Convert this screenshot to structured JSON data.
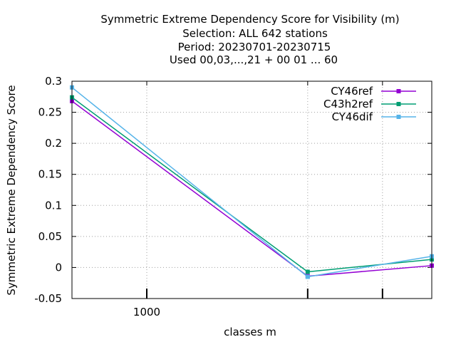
{
  "chart_data": {
    "type": "line",
    "title_lines": [
      "Symmetric Extreme Dependency Score  for Visibility (m)",
      "Selection: ALL    642 stations",
      "Period: 20230701-20230715",
      "Used  00,03,...,21  + 00 01 ... 60"
    ],
    "xlabel": "classes m",
    "ylabel": "Symmetric Extreme Dependency Score",
    "x_scale": "log",
    "xlim": [
      600,
      7000
    ],
    "ylim": [
      -0.05,
      0.3
    ],
    "y_ticks": [
      -0.05,
      0,
      0.05,
      0.1,
      0.15,
      0.2,
      0.25,
      0.3
    ],
    "y_tick_labels": [
      "-0.05",
      "0",
      "0.05",
      "0.1",
      "0.15",
      "0.2",
      "0.25",
      "0.3"
    ],
    "x_ticks": [
      1000,
      3000,
      5000
    ],
    "x_tick_labels": [
      "1000",
      "",
      ""
    ],
    "grid": true,
    "legend_position": "top-right",
    "series": [
      {
        "name": "CY46ref",
        "color": "#9400d3",
        "x": [
          600,
          3000,
          7000
        ],
        "y": [
          0.268,
          -0.014,
          0.003
        ]
      },
      {
        "name": "C43h2ref",
        "color": "#009e73",
        "x": [
          600,
          3000,
          7000
        ],
        "y": [
          0.274,
          -0.007,
          0.013
        ]
      },
      {
        "name": "CY46dif",
        "color": "#56b4e9",
        "x": [
          600,
          3000,
          7000
        ],
        "y": [
          0.29,
          -0.015,
          0.018
        ]
      }
    ]
  }
}
